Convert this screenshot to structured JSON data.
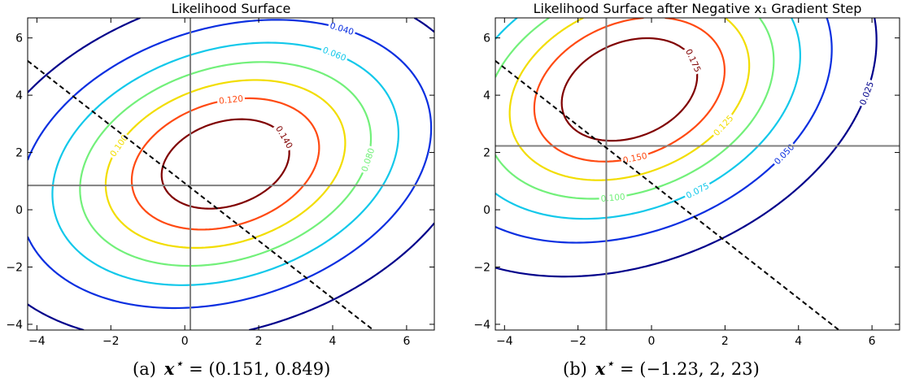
{
  "chart_data": [
    {
      "type": "contour",
      "title": "Likelihood Surface",
      "xlim": [
        -4.25,
        6.75
      ],
      "ylim": [
        -4.2,
        6.7
      ],
      "x_ticks": [
        -4,
        -2,
        0,
        2,
        4,
        6
      ],
      "y_ticks": [
        -4,
        -2,
        0,
        2,
        4,
        6
      ],
      "x_tick_labels": [
        "−4",
        "−2",
        "0",
        "2",
        "4",
        "6"
      ],
      "y_tick_labels": [
        "−4",
        "−2",
        "0",
        "2",
        "4",
        "6"
      ],
      "grid": false,
      "reference_lines": {
        "vertical_x": 0.151,
        "horizontal_y": 0.849,
        "color": "#808080"
      },
      "dashed_line": {
        "points": [
          [
            -4.25,
            5.2
          ],
          [
            5.1,
            -4.2
          ]
        ],
        "color": "#000000"
      },
      "contour_levels": [
        {
          "level": 0.02,
          "label": "0.020",
          "color": "#00008b"
        },
        {
          "level": 0.04,
          "label": "0.040",
          "color": "#0a2fe0"
        },
        {
          "level": 0.06,
          "label": "0.060",
          "color": "#12c8ea"
        },
        {
          "level": 0.08,
          "label": "0.080",
          "color": "#72f07a"
        },
        {
          "level": 0.1,
          "label": "0.100",
          "color": "#f2dd00"
        },
        {
          "level": 0.12,
          "label": "0.120",
          "color": "#ff4a12"
        },
        {
          "level": 0.14,
          "label": "0.140",
          "color": "#800000"
        }
      ]
    },
    {
      "type": "contour",
      "title": "Likelihood Surface after Negative x₁ Gradient Step",
      "xlim": [
        -4.25,
        6.75
      ],
      "ylim": [
        -4.2,
        6.7
      ],
      "x_ticks": [
        -4,
        -2,
        0,
        2,
        4,
        6
      ],
      "y_ticks": [
        -4,
        -2,
        0,
        2,
        4,
        6
      ],
      "x_tick_labels": [
        "−4",
        "−2",
        "0",
        "2",
        "4",
        "6"
      ],
      "y_tick_labels": [
        "−4",
        "−2",
        "0",
        "2",
        "4",
        "6"
      ],
      "grid": false,
      "reference_lines": {
        "vertical_x": -1.23,
        "horizontal_y": 2.23,
        "color": "#808080"
      },
      "dashed_line": {
        "points": [
          [
            -4.25,
            5.2
          ],
          [
            5.1,
            -4.2
          ]
        ],
        "color": "#000000"
      },
      "contour_levels": [
        {
          "level": 0.025,
          "label": "0.025",
          "color": "#00008b"
        },
        {
          "level": 0.05,
          "label": "0.050",
          "color": "#0a2fe0"
        },
        {
          "level": 0.075,
          "label": "0.075",
          "color": "#12c8ea"
        },
        {
          "level": 0.1,
          "label": "0.100",
          "color": "#72f07a"
        },
        {
          "level": 0.125,
          "label": "0.125",
          "color": "#f2dd00"
        },
        {
          "level": 0.15,
          "label": "0.150",
          "color": "#ff4a12"
        },
        {
          "level": 0.175,
          "label": "0.175",
          "color": "#800000"
        }
      ]
    }
  ],
  "captions": {
    "a": {
      "tag": "(a)",
      "symbol": "x",
      "star": "⋆",
      "value": "= (0.151, 0.849)"
    },
    "b": {
      "tag": "(b)",
      "symbol": "x",
      "star": "⋆",
      "value": "= (−1.23, 2, 23)"
    }
  }
}
